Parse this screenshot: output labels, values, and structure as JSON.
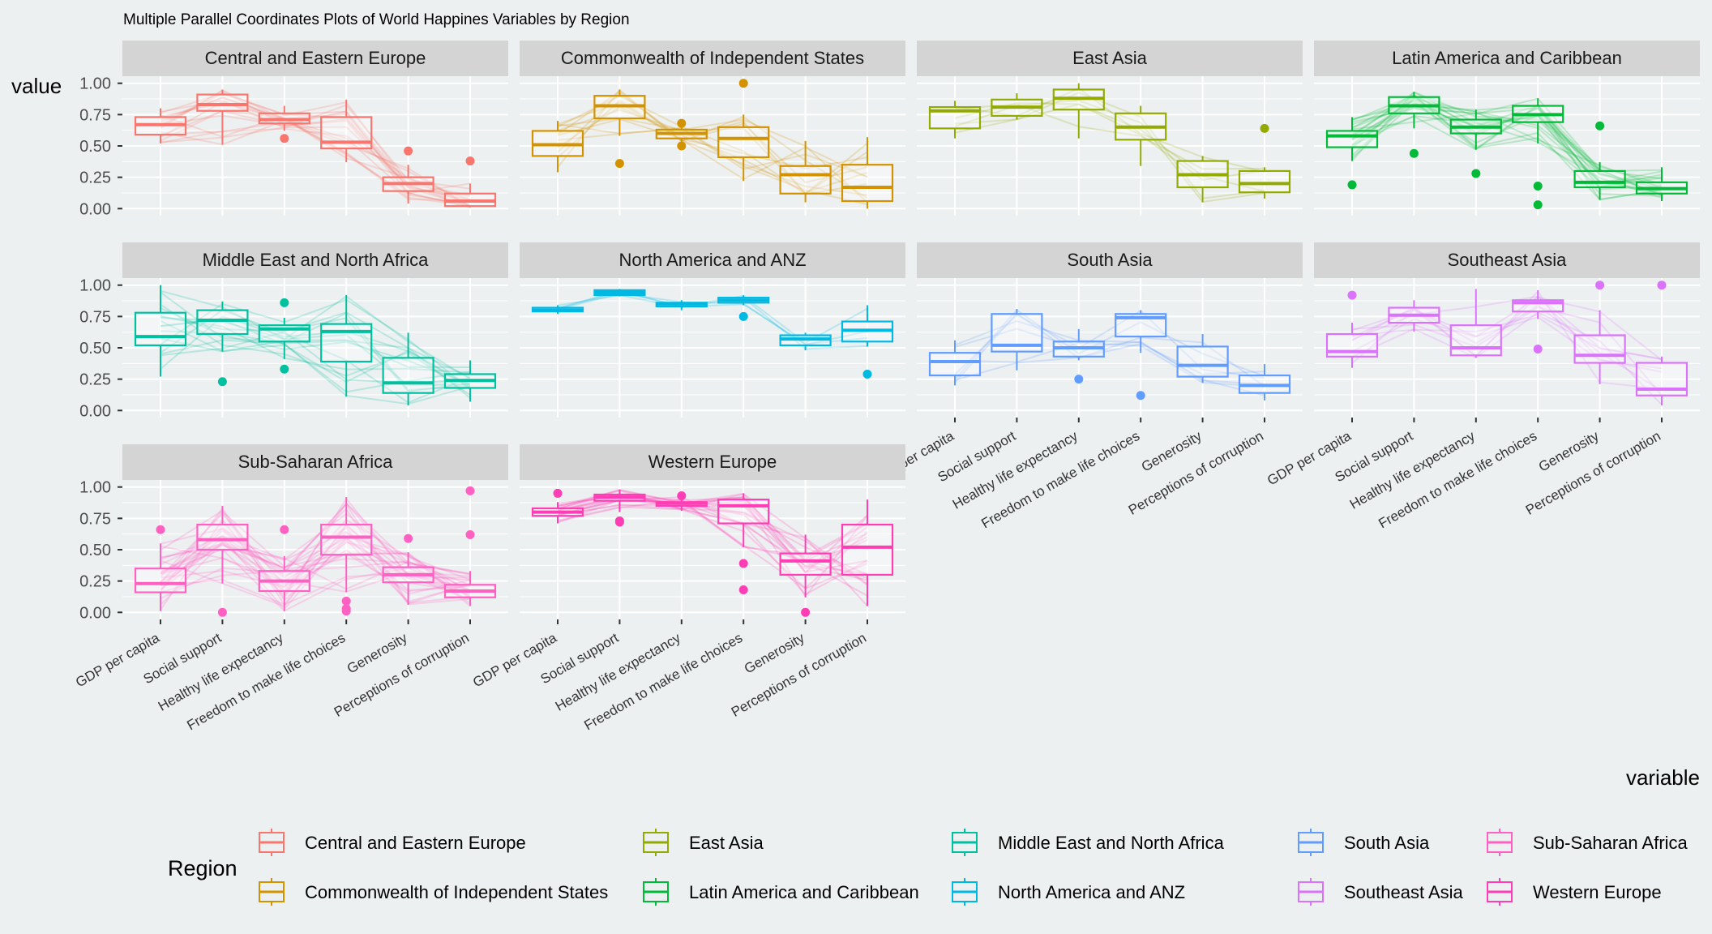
{
  "title": "Multiple Parallel Coordinates Plots of World Happines Variables by Region",
  "axes": {
    "xlabel": "variable",
    "ylabel": "value",
    "yticks": [
      "0.00",
      "0.25",
      "0.50",
      "0.75",
      "1.00"
    ],
    "ytick_values": [
      0,
      0.25,
      0.5,
      0.75,
      1.0
    ]
  },
  "legend": {
    "title": "Region",
    "placement": "bottom"
  },
  "colors": {
    "background": "#edf0f1",
    "strip": "#d4d4d4",
    "grid": "#ffffff"
  },
  "chart_data": {
    "type": "boxplot",
    "facet_layout": "4 columns x 3 rows",
    "variables": [
      "GDP per capita",
      "Social support",
      "Healthy life expectancy",
      "Freedom to make life choices",
      "Generosity",
      "Perceptions of corruption"
    ],
    "ylim": [
      0,
      1
    ],
    "grid": true,
    "series": [
      {
        "name": "Central and Eastern Europe",
        "color": "#F8766D",
        "boxes": [
          {
            "q1": 0.59,
            "median": 0.67,
            "q3": 0.73,
            "lo": 0.52,
            "hi": 0.8,
            "outliers": []
          },
          {
            "q1": 0.78,
            "median": 0.83,
            "q3": 0.91,
            "lo": 0.51,
            "hi": 0.95,
            "outliers": []
          },
          {
            "q1": 0.68,
            "median": 0.71,
            "q3": 0.76,
            "lo": 0.62,
            "hi": 0.82,
            "outliers": [
              0.56
            ]
          },
          {
            "q1": 0.48,
            "median": 0.53,
            "q3": 0.73,
            "lo": 0.37,
            "hi": 0.87,
            "outliers": []
          },
          {
            "q1": 0.14,
            "median": 0.2,
            "q3": 0.25,
            "lo": 0.04,
            "hi": 0.35,
            "outliers": [
              0.46
            ]
          },
          {
            "q1": 0.02,
            "median": 0.06,
            "q3": 0.12,
            "lo": 0.01,
            "hi": 0.2,
            "outliers": [
              0.38
            ]
          }
        ],
        "lines": 17
      },
      {
        "name": "Commonwealth of Independent States",
        "color": "#D39200",
        "boxes": [
          {
            "q1": 0.42,
            "median": 0.51,
            "q3": 0.62,
            "lo": 0.29,
            "hi": 0.7,
            "outliers": []
          },
          {
            "q1": 0.72,
            "median": 0.82,
            "q3": 0.9,
            "lo": 0.58,
            "hi": 0.95,
            "outliers": [
              0.36
            ]
          },
          {
            "q1": 0.56,
            "median": 0.6,
            "q3": 0.63,
            "lo": 0.53,
            "hi": 0.66,
            "outliers": [
              0.68,
              0.5
            ]
          },
          {
            "q1": 0.41,
            "median": 0.56,
            "q3": 0.65,
            "lo": 0.22,
            "hi": 0.75,
            "outliers": [
              1.0
            ]
          },
          {
            "q1": 0.12,
            "median": 0.27,
            "q3": 0.34,
            "lo": 0.05,
            "hi": 0.54,
            "outliers": []
          },
          {
            "q1": 0.06,
            "median": 0.17,
            "q3": 0.35,
            "lo": 0.0,
            "hi": 0.57,
            "outliers": []
          }
        ],
        "lines": 12
      },
      {
        "name": "East Asia",
        "color": "#93AA00",
        "boxes": [
          {
            "q1": 0.64,
            "median": 0.78,
            "q3": 0.81,
            "lo": 0.56,
            "hi": 0.86,
            "outliers": []
          },
          {
            "q1": 0.74,
            "median": 0.81,
            "q3": 0.87,
            "lo": 0.71,
            "hi": 0.92,
            "outliers": []
          },
          {
            "q1": 0.79,
            "median": 0.88,
            "q3": 0.95,
            "lo": 0.56,
            "hi": 1.0,
            "outliers": []
          },
          {
            "q1": 0.55,
            "median": 0.65,
            "q3": 0.76,
            "lo": 0.34,
            "hi": 0.82,
            "outliers": []
          },
          {
            "q1": 0.17,
            "median": 0.27,
            "q3": 0.38,
            "lo": 0.05,
            "hi": 0.42,
            "outliers": []
          },
          {
            "q1": 0.13,
            "median": 0.2,
            "q3": 0.3,
            "lo": 0.08,
            "hi": 0.33,
            "outliers": [
              0.64
            ]
          }
        ],
        "lines": 6
      },
      {
        "name": "Latin America and Caribbean",
        "color": "#00BA38",
        "boxes": [
          {
            "q1": 0.49,
            "median": 0.58,
            "q3": 0.62,
            "lo": 0.38,
            "hi": 0.73,
            "outliers": [
              0.19
            ]
          },
          {
            "q1": 0.76,
            "median": 0.82,
            "q3": 0.89,
            "lo": 0.64,
            "hi": 0.93,
            "outliers": [
              0.44
            ]
          },
          {
            "q1": 0.6,
            "median": 0.65,
            "q3": 0.71,
            "lo": 0.47,
            "hi": 0.79,
            "outliers": [
              0.28
            ]
          },
          {
            "q1": 0.69,
            "median": 0.75,
            "q3": 0.82,
            "lo": 0.52,
            "hi": 0.88,
            "outliers": [
              0.18,
              0.03
            ]
          },
          {
            "q1": 0.17,
            "median": 0.21,
            "q3": 0.3,
            "lo": 0.07,
            "hi": 0.37,
            "outliers": [
              0.66
            ]
          },
          {
            "q1": 0.12,
            "median": 0.16,
            "q3": 0.21,
            "lo": 0.06,
            "hi": 0.33,
            "outliers": []
          }
        ],
        "lines": 20
      },
      {
        "name": "Middle East and North Africa",
        "color": "#00C19F",
        "boxes": [
          {
            "q1": 0.52,
            "median": 0.59,
            "q3": 0.78,
            "lo": 0.27,
            "hi": 1.0,
            "outliers": []
          },
          {
            "q1": 0.61,
            "median": 0.72,
            "q3": 0.8,
            "lo": 0.47,
            "hi": 0.87,
            "outliers": [
              0.23
            ]
          },
          {
            "q1": 0.55,
            "median": 0.65,
            "q3": 0.68,
            "lo": 0.41,
            "hi": 0.74,
            "outliers": [
              0.86,
              0.33
            ]
          },
          {
            "q1": 0.39,
            "median": 0.63,
            "q3": 0.69,
            "lo": 0.11,
            "hi": 0.92,
            "outliers": []
          },
          {
            "q1": 0.14,
            "median": 0.22,
            "q3": 0.42,
            "lo": 0.04,
            "hi": 0.62,
            "outliers": []
          },
          {
            "q1": 0.18,
            "median": 0.24,
            "q3": 0.29,
            "lo": 0.07,
            "hi": 0.4,
            "outliers": []
          }
        ],
        "lines": 17
      },
      {
        "name": "North America and ANZ",
        "color": "#00B9E3",
        "boxes": [
          {
            "q1": 0.79,
            "median": 0.8,
            "q3": 0.82,
            "lo": 0.77,
            "hi": 0.84,
            "outliers": []
          },
          {
            "q1": 0.92,
            "median": 0.94,
            "q3": 0.96,
            "lo": 0.91,
            "hi": 0.97,
            "outliers": []
          },
          {
            "q1": 0.83,
            "median": 0.85,
            "q3": 0.86,
            "lo": 0.8,
            "hi": 0.88,
            "outliers": []
          },
          {
            "q1": 0.86,
            "median": 0.88,
            "q3": 0.9,
            "lo": 0.84,
            "hi": 0.92,
            "outliers": [
              0.75
            ]
          },
          {
            "q1": 0.52,
            "median": 0.57,
            "q3": 0.6,
            "lo": 0.48,
            "hi": 0.62,
            "outliers": []
          },
          {
            "q1": 0.55,
            "median": 0.64,
            "q3": 0.71,
            "lo": 0.51,
            "hi": 0.84,
            "outliers": [
              0.29
            ]
          }
        ],
        "lines": 4
      },
      {
        "name": "South Asia",
        "color": "#619CFF",
        "boxes": [
          {
            "q1": 0.28,
            "median": 0.39,
            "q3": 0.46,
            "lo": 0.2,
            "hi": 0.56,
            "outliers": []
          },
          {
            "q1": 0.47,
            "median": 0.52,
            "q3": 0.77,
            "lo": 0.32,
            "hi": 0.81,
            "outliers": []
          },
          {
            "q1": 0.43,
            "median": 0.5,
            "q3": 0.55,
            "lo": 0.4,
            "hi": 0.65,
            "outliers": [
              0.25
            ]
          },
          {
            "q1": 0.59,
            "median": 0.74,
            "q3": 0.77,
            "lo": 0.46,
            "hi": 0.8,
            "outliers": [
              0.12
            ]
          },
          {
            "q1": 0.27,
            "median": 0.36,
            "q3": 0.51,
            "lo": 0.22,
            "hi": 0.61,
            "outliers": []
          },
          {
            "q1": 0.14,
            "median": 0.2,
            "q3": 0.28,
            "lo": 0.08,
            "hi": 0.37,
            "outliers": []
          }
        ],
        "lines": 7
      },
      {
        "name": "Southeast Asia",
        "color": "#DB72FB",
        "boxes": [
          {
            "q1": 0.43,
            "median": 0.47,
            "q3": 0.61,
            "lo": 0.34,
            "hi": 0.7,
            "outliers": [
              0.92
            ]
          },
          {
            "q1": 0.7,
            "median": 0.76,
            "q3": 0.82,
            "lo": 0.63,
            "hi": 0.88,
            "outliers": []
          },
          {
            "q1": 0.44,
            "median": 0.5,
            "q3": 0.68,
            "lo": 0.42,
            "hi": 0.97,
            "outliers": []
          },
          {
            "q1": 0.79,
            "median": 0.86,
            "q3": 0.88,
            "lo": 0.73,
            "hi": 0.96,
            "outliers": [
              0.49
            ]
          },
          {
            "q1": 0.38,
            "median": 0.44,
            "q3": 0.6,
            "lo": 0.21,
            "hi": 0.8,
            "outliers": [
              1.0
            ]
          },
          {
            "q1": 0.12,
            "median": 0.17,
            "q3": 0.38,
            "lo": 0.04,
            "hi": 0.43,
            "outliers": [
              1.0
            ]
          }
        ],
        "lines": 9
      },
      {
        "name": "Sub-Saharan Africa",
        "color": "#FF61C3",
        "boxes": [
          {
            "q1": 0.16,
            "median": 0.23,
            "q3": 0.35,
            "lo": 0.01,
            "hi": 0.55,
            "outliers": [
              0.66
            ]
          },
          {
            "q1": 0.5,
            "median": 0.58,
            "q3": 0.7,
            "lo": 0.23,
            "hi": 0.85,
            "outliers": [
              0.0
            ]
          },
          {
            "q1": 0.17,
            "median": 0.25,
            "q3": 0.33,
            "lo": 0.01,
            "hi": 0.45,
            "outliers": [
              0.66
            ]
          },
          {
            "q1": 0.46,
            "median": 0.6,
            "q3": 0.7,
            "lo": 0.16,
            "hi": 0.92,
            "outliers": [
              0.09,
              0.03,
              0.01
            ]
          },
          {
            "q1": 0.24,
            "median": 0.3,
            "q3": 0.36,
            "lo": 0.06,
            "hi": 0.48,
            "outliers": [
              0.59
            ]
          },
          {
            "q1": 0.12,
            "median": 0.17,
            "q3": 0.22,
            "lo": 0.05,
            "hi": 0.33,
            "outliers": [
              0.97,
              0.62
            ]
          }
        ],
        "lines": 28
      },
      {
        "name": "Western Europe",
        "color": "#FF3EB5",
        "boxes": [
          {
            "q1": 0.77,
            "median": 0.8,
            "q3": 0.83,
            "lo": 0.71,
            "hi": 0.88,
            "outliers": [
              0.95
            ]
          },
          {
            "q1": 0.89,
            "median": 0.92,
            "q3": 0.94,
            "lo": 0.8,
            "hi": 0.98,
            "outliers": [
              0.73,
              0.72
            ]
          },
          {
            "q1": 0.85,
            "median": 0.87,
            "q3": 0.88,
            "lo": 0.81,
            "hi": 0.92,
            "outliers": [
              0.93
            ]
          },
          {
            "q1": 0.71,
            "median": 0.85,
            "q3": 0.9,
            "lo": 0.52,
            "hi": 0.95,
            "outliers": [
              0.39,
              0.18
            ]
          },
          {
            "q1": 0.3,
            "median": 0.41,
            "q3": 0.47,
            "lo": 0.12,
            "hi": 0.62,
            "outliers": [
              0.0
            ]
          },
          {
            "q1": 0.3,
            "median": 0.52,
            "q3": 0.7,
            "lo": 0.05,
            "hi": 0.9,
            "outliers": []
          }
        ],
        "lines": 20
      }
    ]
  }
}
